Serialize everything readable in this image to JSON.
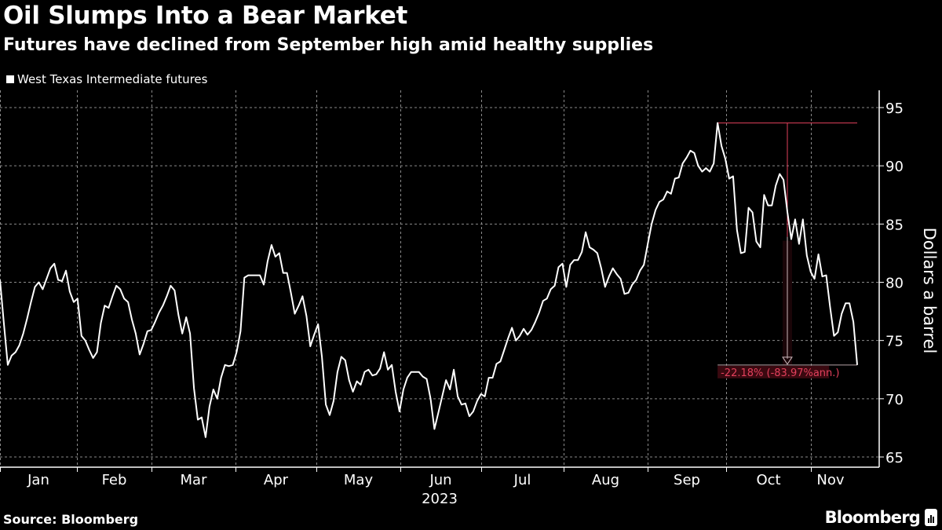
{
  "header": {
    "title": "Oil Slumps Into a Bear Market",
    "subtitle": "Futures have declined from September high amid healthy supplies"
  },
  "footer": {
    "source": "Source: Bloomberg",
    "brand": "Bloomberg"
  },
  "colors": {
    "background": "#000000",
    "line": "#ffffff",
    "annotation": "#e2405c",
    "grid": "#8a8a8a"
  },
  "chart_data": {
    "type": "line",
    "title": "Oil Slumps Into a Bear Market",
    "subtitle": "Futures have declined from September high amid healthy supplies",
    "xlabel": "2023",
    "ylabel": "Dollars a barrel",
    "x_tick_labels": [
      "Jan",
      "Feb",
      "Mar",
      "Apr",
      "May",
      "Jun",
      "Jul",
      "Aug",
      "Sep",
      "Oct",
      "Nov"
    ],
    "y_ticks": [
      95,
      90,
      85,
      80,
      75,
      70,
      65
    ],
    "ylim": [
      64.2,
      96.5
    ],
    "y_axis_side": "right",
    "grid": true,
    "legend_position": "top-left",
    "series": [
      {
        "name": "West Texas Intermediate futures",
        "frequency": "trading days",
        "values": [
          80.2,
          76.5,
          72.9,
          73.7,
          74.0,
          74.6,
          75.6,
          76.9,
          78.3,
          79.6,
          80.0,
          79.4,
          80.3,
          81.2,
          81.6,
          80.2,
          80.1,
          81.0,
          79.2,
          78.3,
          78.6,
          75.4,
          75.0,
          74.2,
          73.5,
          74.0,
          76.5,
          78.0,
          77.8,
          78.8,
          79.7,
          79.4,
          78.6,
          78.3,
          76.8,
          75.6,
          73.8,
          74.7,
          75.8,
          75.9,
          76.6,
          77.4,
          78.0,
          78.8,
          79.7,
          79.3,
          77.2,
          75.6,
          77.0,
          75.6,
          70.9,
          68.2,
          68.4,
          66.7,
          69.3,
          70.8,
          70.0,
          71.8,
          72.9,
          72.8,
          72.9,
          74.0,
          75.8,
          80.4,
          80.6,
          80.6,
          80.6,
          80.6,
          79.8,
          81.8,
          83.2,
          82.2,
          82.5,
          80.8,
          80.8,
          79.1,
          77.3,
          78.0,
          78.8,
          77.1,
          74.5,
          75.5,
          76.4,
          73.6,
          69.5,
          68.6,
          69.8,
          72.3,
          73.6,
          73.3,
          71.6,
          70.6,
          71.5,
          71.2,
          72.3,
          72.5,
          72.0,
          72.1,
          72.6,
          74.0,
          72.5,
          72.9,
          70.6,
          68.9,
          70.8,
          71.8,
          72.3,
          72.3,
          72.3,
          71.9,
          71.7,
          70.0,
          67.4,
          68.8,
          70.2,
          71.6,
          70.8,
          72.5,
          70.2,
          69.5,
          69.6,
          68.5,
          68.9,
          69.8,
          70.4,
          70.2,
          71.8,
          71.8,
          73.0,
          73.2,
          74.2,
          75.2,
          76.1,
          75.0,
          75.4,
          76.0,
          75.5,
          75.9,
          76.6,
          77.4,
          78.4,
          78.6,
          79.4,
          79.7,
          81.3,
          81.6,
          79.6,
          81.5,
          81.9,
          81.9,
          82.6,
          84.3,
          83.0,
          82.8,
          82.5,
          81.2,
          79.6,
          80.5,
          81.2,
          80.7,
          80.3,
          79.0,
          79.1,
          79.8,
          80.2,
          81.0,
          81.5,
          83.3,
          85.0,
          86.2,
          86.9,
          87.1,
          87.8,
          87.6,
          88.9,
          89.0,
          90.2,
          90.7,
          91.3,
          91.1,
          90.0,
          89.5,
          89.8,
          89.5,
          90.2,
          93.68,
          91.7,
          90.6,
          88.9,
          89.1,
          84.5,
          82.5,
          82.6,
          86.4,
          86.0,
          83.5,
          83.0,
          87.5,
          86.6,
          86.6,
          88.3,
          89.3,
          88.8,
          86.0,
          83.7,
          85.4,
          83.3,
          85.4,
          82.3,
          80.9,
          80.3,
          82.4,
          80.5,
          80.6,
          77.9,
          75.4,
          75.7,
          77.3,
          78.2,
          78.2,
          76.6,
          72.9
        ]
      }
    ],
    "annotation": {
      "type": "drawdown",
      "from_value": 93.68,
      "to_value": 72.9,
      "label": "-22.18% (-83.97%ann.)"
    }
  }
}
